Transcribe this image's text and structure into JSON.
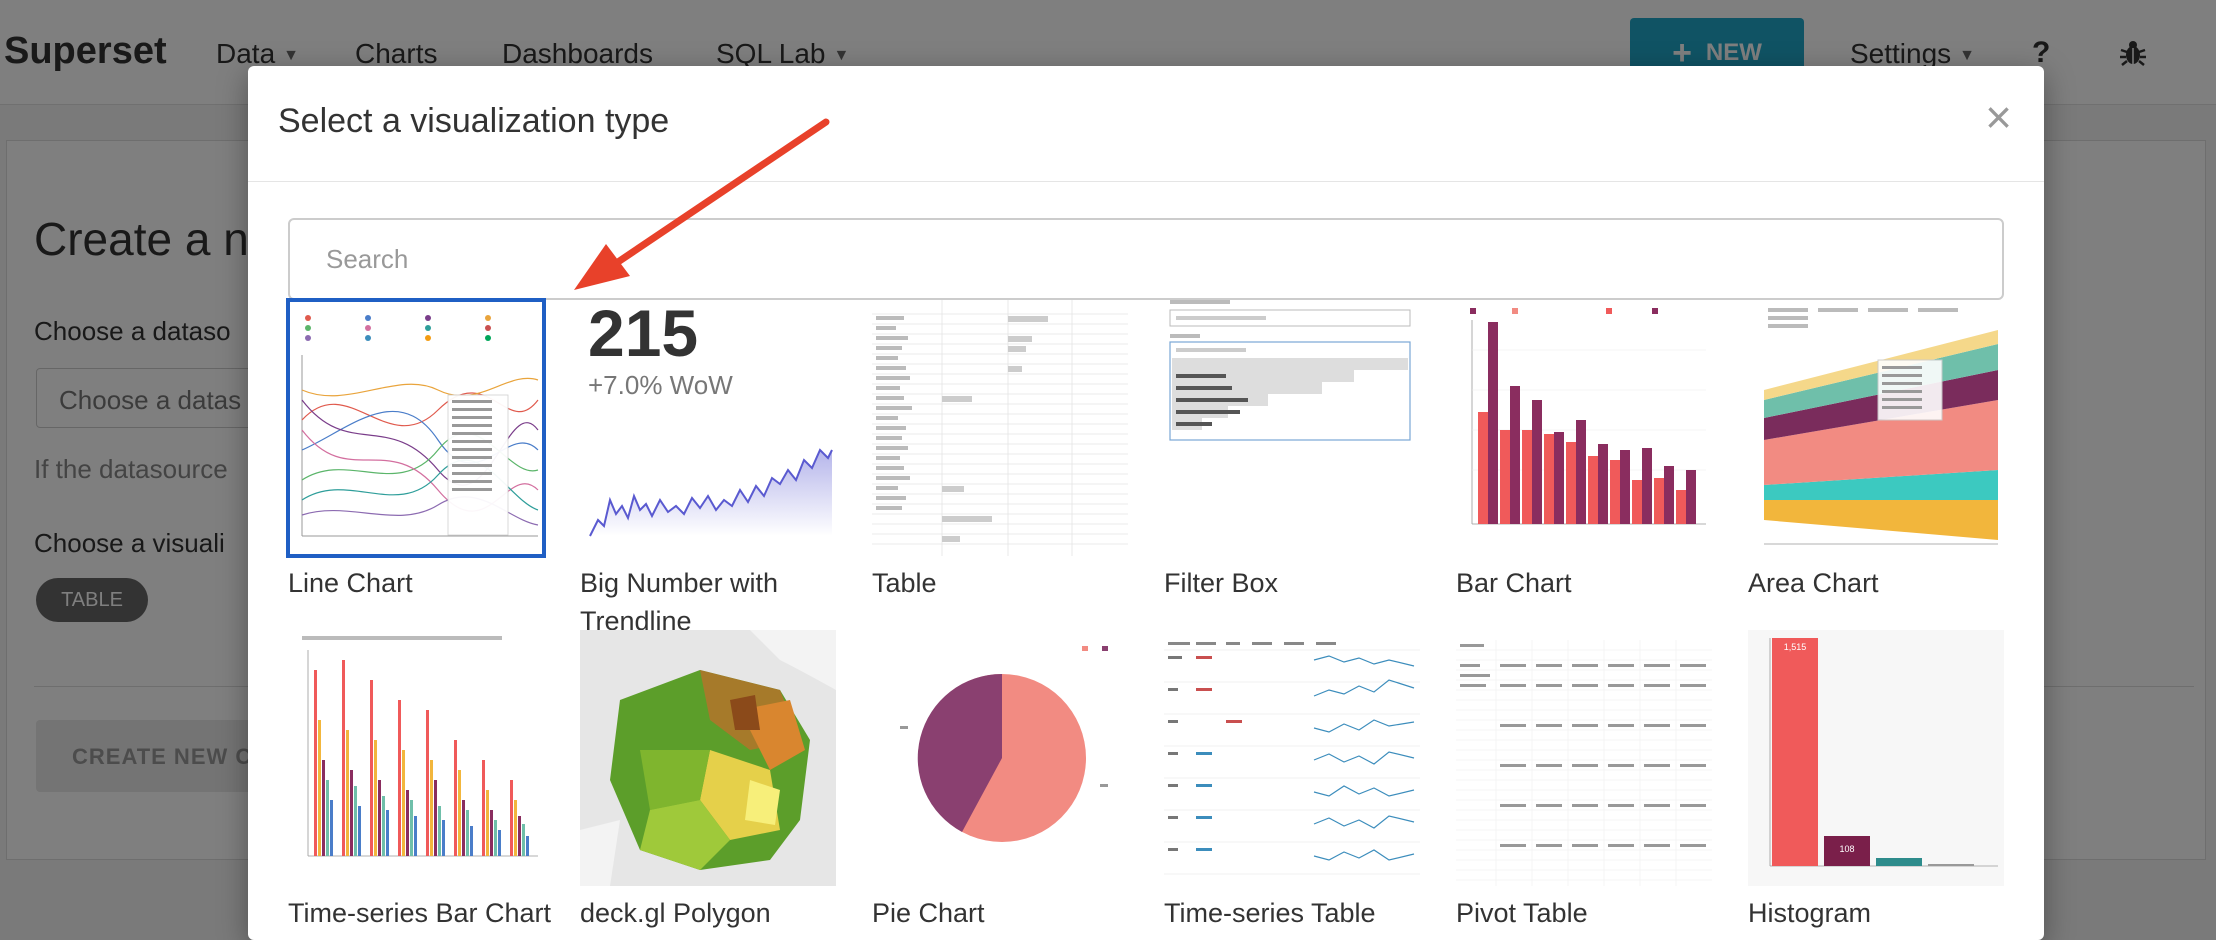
{
  "navbar": {
    "brand": "Superset",
    "items": [
      {
        "label": "Data",
        "has_caret": true
      },
      {
        "label": "Charts",
        "has_caret": false
      },
      {
        "label": "Dashboards",
        "has_caret": false
      },
      {
        "label": "SQL Lab",
        "has_caret": true
      }
    ],
    "new_button": "NEW",
    "settings": "Settings",
    "help": "?"
  },
  "background_page": {
    "title": "Create a n",
    "datasource_label": "Choose a dataso",
    "datasource_placeholder": "Choose a datas",
    "datasource_help": "If the datasource",
    "viz_label": "Choose a visuali",
    "viz_tag": "TABLE",
    "create_button": "CREATE NEW C"
  },
  "modal": {
    "title": "Select a visualization type",
    "close": "×",
    "search_placeholder": "Search",
    "selected": "Line Chart",
    "tiles": [
      {
        "label": "Line Chart",
        "thumb": "line-chart-thumbnail"
      },
      {
        "label": "Big Number with Trendline",
        "thumb": "big-number-thumbnail"
      },
      {
        "label": "Table",
        "thumb": "table-thumbnail"
      },
      {
        "label": "Filter Box",
        "thumb": "filter-box-thumbnail"
      },
      {
        "label": "Bar Chart",
        "thumb": "bar-chart-thumbnail"
      },
      {
        "label": "Area Chart",
        "thumb": "area-chart-thumbnail"
      },
      {
        "label": "Time-series Bar Chart",
        "thumb": "timeseries-bar-thumbnail"
      },
      {
        "label": "deck.gl Polygon",
        "thumb": "deckgl-polygon-thumbnail"
      },
      {
        "label": "Pie Chart",
        "thumb": "pie-chart-thumbnail"
      },
      {
        "label": "Time-series Table",
        "thumb": "timeseries-table-thumbnail"
      },
      {
        "label": "Pivot Table",
        "thumb": "pivot-table-thumbnail"
      },
      {
        "label": "Histogram",
        "thumb": "histogram-thumbnail"
      }
    ],
    "big_number": {
      "value": "215",
      "subtitle": "+7.0% WoW"
    },
    "histogram": {
      "first_bar_label": "1,515",
      "second_bar_label": "108"
    }
  },
  "colors": {
    "accent": "#20a7c9",
    "selected_border": "#1f5fc4",
    "arrow": "#e8412a",
    "bar_red": "#f05a5a",
    "bar_purple": "#8a2d5f"
  }
}
